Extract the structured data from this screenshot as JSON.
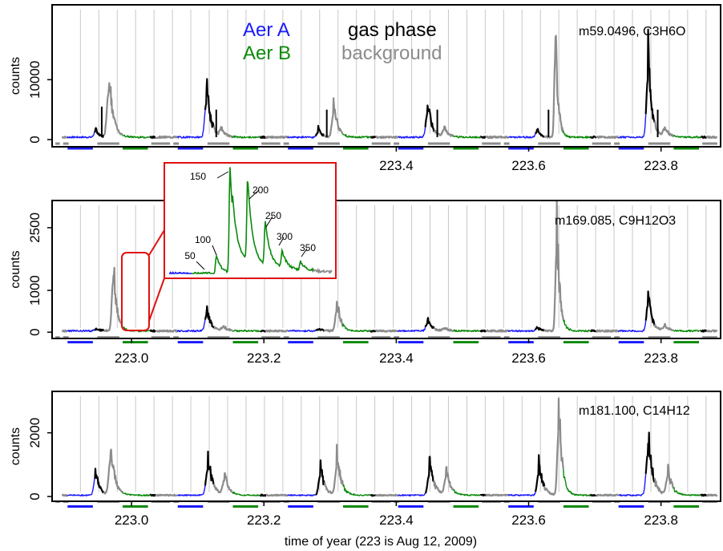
{
  "colors": {
    "aer_a": "#1a1aff",
    "aer_b": "#0a8a0a",
    "gas_phase": "#000000",
    "background": "#8c8c8c",
    "inset_border": "#e01010",
    "vgrid": "#c8c8c8"
  },
  "legend": {
    "aer_a": "Aer A",
    "aer_b": "Aer B",
    "gas_phase": "gas phase",
    "background": "background"
  },
  "xlabel": "time of year (223 is Aug 12, 2009)",
  "inset_cycle_labels": [
    "50",
    "100",
    "150",
    "200",
    "250",
    "300",
    "350"
  ],
  "chart_data": [
    {
      "type": "line",
      "label": "m59.0496, C3H6O",
      "ylabel": "counts",
      "xlim": [
        222.88,
        223.89
      ],
      "ylim": [
        -1200,
        22500
      ],
      "yticks": [
        0,
        10000
      ],
      "xticks": [
        223.4,
        223.6,
        223.8
      ],
      "cycle_start": 222.895,
      "cycle_length": 0.1665,
      "vgrid_spacing": 0.0278,
      "baseline": 400,
      "peaks": [
        {
          "x": 222.945,
          "y": 1500,
          "series": "aer_a",
          "w": 0.008
        },
        {
          "x": 222.965,
          "y": 12000,
          "series": "aer_b",
          "w": 0.01
        },
        {
          "x": 223.113,
          "y": 9500,
          "series": "aer_a",
          "w": 0.01
        },
        {
          "x": 223.135,
          "y": 1400,
          "series": "aer_b",
          "w": 0.01
        },
        {
          "x": 223.282,
          "y": 1500,
          "series": "aer_a",
          "w": 0.008
        },
        {
          "x": 223.305,
          "y": 6000,
          "series": "aer_b",
          "w": 0.01
        },
        {
          "x": 223.447,
          "y": 6500,
          "series": "aer_a",
          "w": 0.01
        },
        {
          "x": 223.472,
          "y": 1800,
          "series": "aer_b",
          "w": 0.01
        },
        {
          "x": 223.612,
          "y": 1500,
          "series": "aer_a",
          "w": 0.008
        },
        {
          "x": 223.64,
          "y": 22000,
          "series": "aer_b",
          "w": 0.006
        },
        {
          "x": 223.78,
          "y": 16000,
          "series": "aer_a",
          "w": 0.009
        },
        {
          "x": 223.805,
          "y": 1800,
          "series": "aer_b",
          "w": 0.01
        }
      ],
      "spikes": [
        {
          "x": 222.955,
          "y": 5500
        },
        {
          "x": 223.128,
          "y": 5000
        },
        {
          "x": 223.295,
          "y": 5000
        },
        {
          "x": 223.462,
          "y": 5000
        },
        {
          "x": 223.63,
          "y": 5000
        },
        {
          "x": 223.795,
          "y": 5000
        }
      ]
    },
    {
      "type": "line",
      "label": "m169.085, C9H12O3",
      "ylabel": "counts",
      "xlim": [
        222.88,
        223.89
      ],
      "ylim": [
        -150,
        3150
      ],
      "yticks": [
        0,
        1000,
        2500
      ],
      "xticks": [
        223.0,
        223.2,
        223.4,
        223.6,
        223.8
      ],
      "cycle_start": 222.895,
      "cycle_length": 0.1665,
      "vgrid_spacing": 0.0278,
      "baseline": 30,
      "peaks": [
        {
          "x": 222.945,
          "y": 60,
          "series": "aer_a",
          "w": 0.01
        },
        {
          "x": 222.972,
          "y": 1900,
          "series": "aer_b",
          "w": 0.008
        },
        {
          "x": 223.113,
          "y": 600,
          "series": "aer_a",
          "w": 0.01
        },
        {
          "x": 223.138,
          "y": 120,
          "series": "aer_b",
          "w": 0.01
        },
        {
          "x": 223.282,
          "y": 60,
          "series": "aer_a",
          "w": 0.01
        },
        {
          "x": 223.31,
          "y": 800,
          "series": "aer_b",
          "w": 0.009
        },
        {
          "x": 223.447,
          "y": 300,
          "series": "aer_a",
          "w": 0.01
        },
        {
          "x": 223.472,
          "y": 80,
          "series": "aer_b",
          "w": 0.01
        },
        {
          "x": 223.612,
          "y": 80,
          "series": "aer_a",
          "w": 0.01
        },
        {
          "x": 223.642,
          "y": 3100,
          "series": "aer_b",
          "w": 0.007
        },
        {
          "x": 223.78,
          "y": 1000,
          "series": "aer_a",
          "w": 0.009
        },
        {
          "x": 223.805,
          "y": 150,
          "series": "aer_b",
          "w": 0.01
        }
      ],
      "spikes": []
    },
    {
      "type": "line",
      "label": "m181.100, C14H12",
      "ylabel": "counts",
      "xlim": [
        222.88,
        223.89
      ],
      "ylim": [
        -150,
        3300
      ],
      "yticks": [
        0,
        2000
      ],
      "xticks": [
        223.0,
        223.2,
        223.4,
        223.6,
        223.8
      ],
      "cycle_start": 222.895,
      "cycle_length": 0.1665,
      "vgrid_spacing": 0.0278,
      "baseline": 40,
      "peaks": [
        {
          "x": 222.945,
          "y": 900,
          "series": "aer_a",
          "w": 0.009
        },
        {
          "x": 222.968,
          "y": 1800,
          "series": "aer_b",
          "w": 0.01
        },
        {
          "x": 223.115,
          "y": 1300,
          "series": "aer_a",
          "w": 0.011
        },
        {
          "x": 223.14,
          "y": 700,
          "series": "aer_b",
          "w": 0.01
        },
        {
          "x": 223.285,
          "y": 1000,
          "series": "aer_a",
          "w": 0.01
        },
        {
          "x": 223.31,
          "y": 1400,
          "series": "aer_b",
          "w": 0.01
        },
        {
          "x": 223.45,
          "y": 1100,
          "series": "aer_a",
          "w": 0.011
        },
        {
          "x": 223.475,
          "y": 850,
          "series": "aer_b",
          "w": 0.01
        },
        {
          "x": 223.615,
          "y": 1100,
          "series": "aer_a",
          "w": 0.01
        },
        {
          "x": 223.645,
          "y": 3200,
          "series": "aer_b",
          "w": 0.008
        },
        {
          "x": 223.78,
          "y": 2100,
          "series": "aer_a",
          "w": 0.011
        },
        {
          "x": 223.81,
          "y": 900,
          "series": "aer_b",
          "w": 0.01
        }
      ],
      "spikes": []
    }
  ]
}
